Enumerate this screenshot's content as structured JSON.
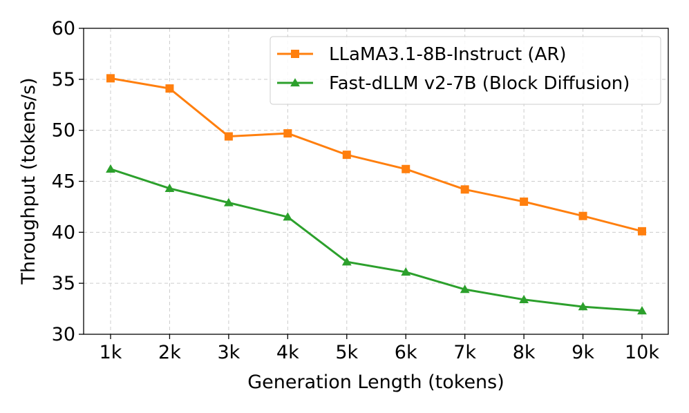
{
  "chart_data": {
    "type": "line",
    "title": "",
    "xlabel": "Generation Length (tokens)",
    "ylabel": "Throughput (tokens/s)",
    "categories": [
      "1k",
      "2k",
      "3k",
      "4k",
      "5k",
      "6k",
      "7k",
      "8k",
      "9k",
      "10k"
    ],
    "ylim": [
      30,
      60
    ],
    "yticks": [
      30,
      35,
      40,
      45,
      50,
      55,
      60
    ],
    "grid": true,
    "legend_position": "top-right",
    "series": [
      {
        "name": "LLaMA3.1-8B-Instruct (AR)",
        "color": "#ff7f0e",
        "marker": "square",
        "values": [
          55.1,
          54.1,
          49.4,
          49.7,
          47.6,
          46.2,
          44.2,
          43.0,
          41.6,
          40.1
        ]
      },
      {
        "name": "Fast-dLLM v2-7B (Block Diffusion)",
        "color": "#2ca02c",
        "marker": "triangle",
        "values": [
          46.2,
          44.3,
          42.9,
          41.5,
          37.1,
          36.1,
          34.4,
          33.4,
          32.7,
          32.3
        ]
      }
    ]
  }
}
